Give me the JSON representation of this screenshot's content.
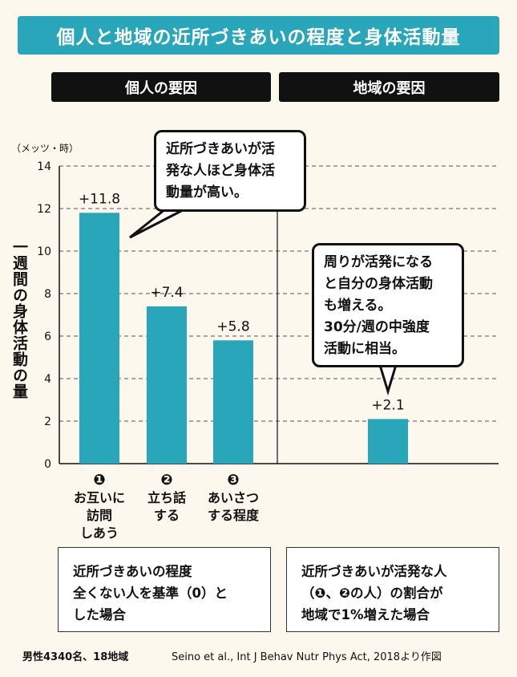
{
  "title": "個人と地域の近所づきあいの程度と身体活動量",
  "headers": {
    "left": "個人の要因",
    "right": "地域の要因"
  },
  "unit": "（メッツ・時）",
  "ylabel": "一週間の身体活動の量",
  "chart_data": {
    "type": "bar",
    "ylim": [
      0,
      14
    ],
    "yticks": [
      0,
      2,
      4,
      6,
      8,
      10,
      12,
      14
    ],
    "grid": true,
    "bar_color": "#2aa6bb",
    "bars": [
      {
        "value": 11.8,
        "label": "+11.8",
        "panel": "left",
        "cat_index": 0
      },
      {
        "value": 7.4,
        "label": "+7.4",
        "panel": "left",
        "cat_index": 1
      },
      {
        "value": 5.8,
        "label": "+5.8",
        "panel": "left",
        "cat_index": 2
      },
      {
        "value": 2.1,
        "label": "+2.1",
        "panel": "right"
      }
    ],
    "categories": [
      {
        "num": "❶",
        "lines": [
          "お互いに",
          "訪問",
          "しあう"
        ]
      },
      {
        "num": "❷",
        "lines": [
          "立ち話",
          "する"
        ]
      },
      {
        "num": "❸",
        "lines": [
          "あいさつ",
          "する程度"
        ]
      }
    ]
  },
  "bubbles": {
    "left": [
      "近所づきあいが活",
      "発な人ほど身体活",
      "動量が高い。"
    ],
    "right": [
      "周りが活発になる",
      "と自分の身体活動",
      "も増える。",
      "30分/週の中強度",
      "活動に相当。"
    ]
  },
  "notes": {
    "left": [
      "近所づきあいの程度",
      "全くない人を基準（0）と",
      "した場合"
    ],
    "right": [
      "近所づきあいが活発な人",
      "（❶、❷の人）の割合が",
      "地域で1%増えた場合"
    ]
  },
  "footer": {
    "left": "男性4340名、18地域",
    "right": "Seino et al., Int J Behav Nutr Phys Act, 2018より作図"
  }
}
